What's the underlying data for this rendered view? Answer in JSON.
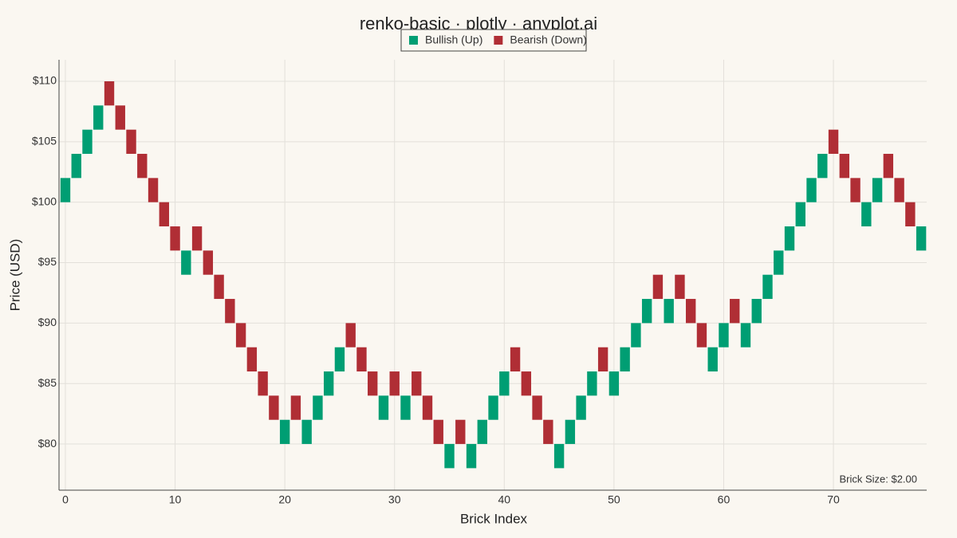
{
  "chart_data": {
    "type": "renko",
    "title": "renko-basic · plotly · anyplot.ai",
    "x_label": "Brick Index",
    "y_label": "Price (USD)",
    "annotation": "Brick Size: $2.00",
    "xlim": [
      -0.58,
      78.5
    ],
    "ylim": [
      76.18,
      111.78
    ],
    "xticks": [
      0,
      10,
      20,
      30,
      40,
      50,
      60,
      70
    ],
    "yticks": [
      {
        "value": 80,
        "label": "$80"
      },
      {
        "value": 85,
        "label": "$85"
      },
      {
        "value": 90,
        "label": "$90"
      },
      {
        "value": 95,
        "label": "$95"
      },
      {
        "value": 100,
        "label": "$100"
      },
      {
        "value": 105,
        "label": "$105"
      },
      {
        "value": 110,
        "label": "$110"
      }
    ],
    "grid": true,
    "series": [
      {
        "name": "Bullish (Up)",
        "color": "#009E73",
        "x": [
          0,
          1,
          2,
          3,
          11,
          20,
          22,
          23,
          24,
          25,
          29,
          31,
          35,
          37,
          38,
          39,
          40,
          45,
          46,
          47,
          48,
          50,
          51,
          52,
          53,
          55,
          59,
          60,
          62,
          63,
          64,
          65,
          66,
          67,
          68,
          69,
          73,
          74,
          78
        ],
        "open": [
          100,
          102,
          104,
          106,
          94,
          80,
          80,
          82,
          84,
          86,
          82,
          82,
          78,
          78,
          80,
          82,
          84,
          78,
          80,
          82,
          84,
          84,
          86,
          88,
          90,
          90,
          86,
          88,
          88,
          90,
          92,
          94,
          96,
          98,
          100,
          102,
          98,
          100,
          96
        ],
        "close": [
          102,
          104,
          106,
          108,
          96,
          82,
          82,
          84,
          86,
          88,
          84,
          84,
          80,
          80,
          82,
          84,
          86,
          80,
          82,
          84,
          86,
          86,
          88,
          90,
          92,
          92,
          88,
          90,
          90,
          92,
          94,
          96,
          98,
          100,
          102,
          104,
          100,
          102,
          98
        ]
      },
      {
        "name": "Bearish (Down)",
        "color": "#B02E35",
        "x": [
          4,
          5,
          6,
          7,
          8,
          9,
          10,
          12,
          13,
          14,
          15,
          16,
          17,
          18,
          19,
          21,
          26,
          27,
          28,
          30,
          32,
          33,
          34,
          36,
          41,
          42,
          43,
          44,
          49,
          54,
          56,
          57,
          58,
          61,
          70,
          71,
          72,
          75,
          76,
          77
        ],
        "open": [
          110,
          108,
          106,
          104,
          102,
          100,
          98,
          98,
          96,
          94,
          92,
          90,
          88,
          86,
          84,
          84,
          90,
          88,
          86,
          86,
          86,
          84,
          82,
          82,
          88,
          86,
          84,
          82,
          88,
          94,
          94,
          92,
          90,
          92,
          106,
          104,
          102,
          104,
          102,
          100
        ],
        "close": [
          108,
          106,
          104,
          102,
          100,
          98,
          96,
          96,
          94,
          92,
          90,
          88,
          86,
          84,
          82,
          82,
          88,
          86,
          84,
          84,
          84,
          82,
          80,
          80,
          86,
          84,
          82,
          80,
          86,
          92,
          92,
          90,
          88,
          90,
          104,
          102,
          100,
          102,
          100,
          98
        ]
      }
    ]
  }
}
